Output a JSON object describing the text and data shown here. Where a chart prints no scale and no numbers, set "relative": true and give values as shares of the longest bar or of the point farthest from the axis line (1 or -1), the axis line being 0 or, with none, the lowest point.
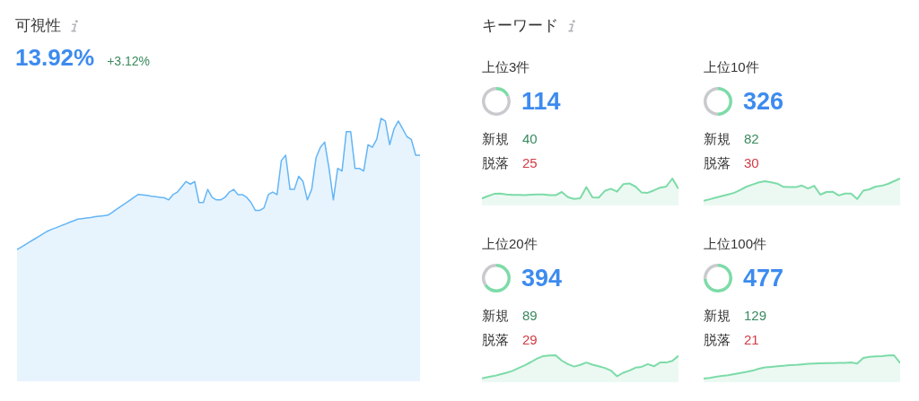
{
  "chart_data": [
    {
      "type": "area",
      "title": "可視性",
      "annotations": [
        "13.92%",
        "+3.12%"
      ],
      "relative": true,
      "color": "#64b5f6",
      "categories": [
        null,
        null,
        null,
        null,
        null,
        null,
        null,
        null,
        null,
        null,
        null,
        null,
        null,
        null,
        null,
        null,
        null,
        null,
        null,
        null,
        null,
        null,
        null,
        null,
        null,
        null,
        null,
        null,
        null,
        null,
        null,
        null,
        null,
        null,
        null,
        null,
        null,
        null,
        null,
        null,
        null,
        null,
        null,
        null,
        null,
        null,
        null,
        null,
        null,
        null,
        null,
        null,
        null,
        null,
        null,
        null,
        null,
        null,
        null,
        null,
        null,
        null,
        null,
        null,
        null,
        null,
        null,
        null,
        null,
        null,
        null,
        null,
        null,
        null,
        null,
        null,
        null,
        null,
        null,
        null,
        null,
        null,
        null,
        null,
        null,
        null,
        null,
        null,
        null,
        null,
        null,
        null,
        null,
        null
      ],
      "values": [
        0.501,
        0.511,
        0.521,
        0.531,
        0.541,
        0.551,
        0.561,
        0.571,
        0.578,
        0.584,
        0.591,
        0.597,
        0.604,
        0.61,
        0.617,
        0.619,
        0.621,
        0.623,
        0.626,
        0.628,
        0.63,
        0.632,
        0.643,
        0.655,
        0.666,
        0.677,
        0.688,
        0.7,
        0.711,
        0.709,
        0.707,
        0.704,
        0.702,
        0.7,
        0.698,
        0.69,
        0.71,
        0.72,
        0.74,
        0.76,
        0.75,
        0.76,
        0.68,
        0.68,
        0.73,
        0.7,
        0.69,
        0.69,
        0.7,
        0.72,
        0.73,
        0.71,
        0.71,
        0.7,
        0.68,
        0.65,
        0.65,
        0.66,
        0.71,
        0.72,
        0.71,
        0.84,
        0.86,
        0.73,
        0.73,
        0.78,
        0.76,
        0.69,
        0.73,
        0.85,
        0.89,
        0.91,
        0.81,
        0.69,
        0.81,
        0.8,
        0.95,
        0.95,
        0.81,
        0.81,
        0.8,
        0.9,
        0.89,
        0.92,
        1,
        0.99,
        0.9,
        0.96,
        0.99,
        0.96,
        0.93,
        0.92,
        0.86,
        0.86
      ]
    },
    {
      "type": "other",
      "title": "キーワード"
    },
    {
      "type": "donut",
      "title": "上位3件",
      "categories": [
        null,
        null
      ],
      "values": [
        18,
        82
      ],
      "colors": [
        "#7ddba8",
        "#c9cacd"
      ],
      "annotations": [
        "114",
        "新規",
        "40",
        "脱落",
        "25"
      ]
    },
    {
      "type": "area",
      "relative": true,
      "color": "#7ddba8",
      "categories": [
        null,
        null,
        null,
        null,
        null,
        null,
        null,
        null,
        null,
        null,
        null,
        null,
        null,
        null,
        null,
        null,
        null,
        null,
        null,
        null,
        null,
        null,
        null,
        null,
        null,
        null,
        null,
        null,
        null,
        null,
        null,
        null,
        null
      ],
      "values": [
        0.26,
        0.35,
        0.43,
        0.44,
        0.41,
        0.39,
        0.39,
        0.38,
        0.4,
        0.41,
        0.41,
        0.38,
        0.38,
        0.5,
        0.31,
        0.24,
        0.27,
        0.68,
        0.3,
        0.29,
        0.54,
        0.62,
        0.51,
        0.79,
        0.82,
        0.7,
        0.48,
        0.47,
        0.56,
        0.66,
        0.7,
        1,
        0.62
      ]
    },
    {
      "type": "donut",
      "title": "上位10件",
      "categories": [
        null,
        null
      ],
      "values": [
        50,
        50
      ],
      "colors": [
        "#7ddba8",
        "#c9cacd"
      ],
      "annotations": [
        "326",
        "新規",
        "82",
        "脱落",
        "30"
      ]
    },
    {
      "type": "area",
      "relative": true,
      "color": "#7ddba8",
      "categories": [
        null,
        null,
        null,
        null,
        null,
        null,
        null,
        null,
        null,
        null,
        null,
        null,
        null,
        null,
        null,
        null,
        null,
        null,
        null,
        null,
        null,
        null,
        null,
        null,
        null,
        null,
        null,
        null,
        null,
        null,
        null,
        null,
        null
      ],
      "values": [
        0.17,
        0.23,
        0.29,
        0.35,
        0.41,
        0.47,
        0.58,
        0.7,
        0.78,
        0.86,
        0.9,
        0.86,
        0.81,
        0.69,
        0.68,
        0.68,
        0.74,
        0.63,
        0.73,
        0.4,
        0.5,
        0.51,
        0.37,
        0.44,
        0.44,
        0.24,
        0.55,
        0.6,
        0.7,
        0.73,
        0.8,
        0.9,
        1
      ]
    },
    {
      "type": "donut",
      "title": "上位20件",
      "categories": [
        null,
        null
      ],
      "values": [
        66,
        34
      ],
      "colors": [
        "#7ddba8",
        "#c9cacd"
      ],
      "annotations": [
        "394",
        "新規",
        "89",
        "脱落",
        "29"
      ]
    },
    {
      "type": "area",
      "relative": true,
      "color": "#7ddba8",
      "categories": [
        null,
        null,
        null,
        null,
        null,
        null,
        null,
        null,
        null,
        null,
        null,
        null,
        null,
        null,
        null,
        null,
        null,
        null,
        null,
        null,
        null,
        null,
        null,
        null,
        null,
        null,
        null,
        null,
        null,
        null,
        null,
        null,
        null
      ],
      "values": [
        0.14,
        0.19,
        0.23,
        0.29,
        0.35,
        0.42,
        0.53,
        0.63,
        0.75,
        0.88,
        0.97,
        0.99,
        1,
        0.8,
        0.67,
        0.58,
        0.64,
        0.73,
        0.65,
        0.59,
        0.53,
        0.43,
        0.22,
        0.35,
        0.43,
        0.54,
        0.57,
        0.67,
        0.59,
        0.73,
        0.73,
        0.79,
        0.98
      ]
    },
    {
      "type": "donut",
      "title": "上位100件",
      "categories": [
        null,
        null
      ],
      "values": [
        74,
        26
      ],
      "colors": [
        "#7ddba8",
        "#c9cacd"
      ],
      "annotations": [
        "477",
        "新規",
        "129",
        "脱落",
        "21"
      ]
    },
    {
      "type": "area",
      "relative": true,
      "color": "#7ddba8",
      "categories": [
        null,
        null,
        null,
        null,
        null,
        null,
        null,
        null,
        null,
        null,
        null,
        null,
        null,
        null,
        null,
        null,
        null,
        null,
        null,
        null,
        null,
        null,
        null,
        null,
        null,
        null,
        null,
        null,
        null,
        null,
        null,
        null,
        null
      ],
      "values": [
        0.13,
        0.16,
        0.2,
        0.23,
        0.26,
        0.3,
        0.34,
        0.38,
        0.43,
        0.5,
        0.55,
        0.57,
        0.59,
        0.61,
        0.63,
        0.64,
        0.66,
        0.68,
        0.69,
        0.7,
        0.71,
        0.71,
        0.72,
        0.72,
        0.73,
        0.69,
        0.9,
        0.94,
        0.96,
        0.97,
        0.99,
        1,
        0.71
      ]
    }
  ]
}
